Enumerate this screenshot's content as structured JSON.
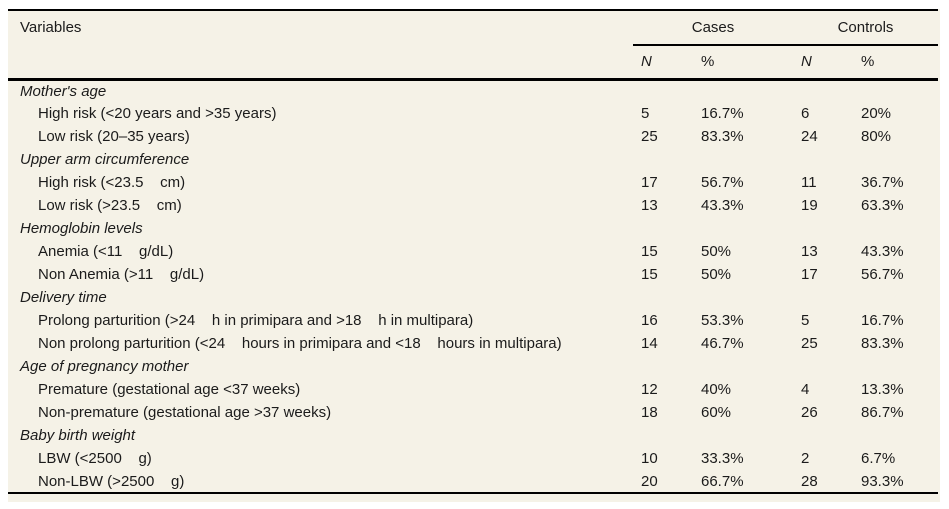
{
  "colors": {
    "page_background": "#ffffff",
    "panel_background": "#f5f2e7",
    "rule": "#000000",
    "text": "#1b1b1b"
  },
  "table": {
    "header": {
      "variables": "Variables",
      "cases": "Cases",
      "controls": "Controls",
      "n": "N",
      "pct": "%"
    },
    "rows": [
      {
        "type": "group",
        "label": "Mother's age"
      },
      {
        "type": "item",
        "label": "High risk (<20 years and >35 years)",
        "cases_n": "5",
        "cases_pct": "16.7%",
        "controls_n": "6",
        "controls_pct": "20%"
      },
      {
        "type": "item",
        "label": "Low risk (20–35 years)",
        "cases_n": "25",
        "cases_pct": "83.3%",
        "controls_n": "24",
        "controls_pct": "80%"
      },
      {
        "type": "group",
        "label": "Upper arm circumference"
      },
      {
        "type": "item",
        "label": "High risk (<23.5    cm)",
        "cases_n": "17",
        "cases_pct": "56.7%",
        "controls_n": "11",
        "controls_pct": "36.7%"
      },
      {
        "type": "item",
        "label": "Low risk (>23.5    cm)",
        "cases_n": "13",
        "cases_pct": "43.3%",
        "controls_n": "19",
        "controls_pct": "63.3%"
      },
      {
        "type": "group",
        "label": "Hemoglobin levels"
      },
      {
        "type": "item",
        "label": "Anemia (<11    g/dL)",
        "cases_n": "15",
        "cases_pct": "50%",
        "controls_n": "13",
        "controls_pct": "43.3%"
      },
      {
        "type": "item",
        "label": "Non Anemia (>11    g/dL)",
        "cases_n": "15",
        "cases_pct": "50%",
        "controls_n": "17",
        "controls_pct": "56.7%"
      },
      {
        "type": "group",
        "label": "Delivery time"
      },
      {
        "type": "item",
        "label": "Prolong parturition (>24    h in primipara and >18    h in multipara)",
        "cases_n": "16",
        "cases_pct": "53.3%",
        "controls_n": "5",
        "controls_pct": "16.7%"
      },
      {
        "type": "item",
        "label": "Non prolong parturition (<24    hours in primipara and <18    hours in multipara)",
        "cases_n": "14",
        "cases_pct": "46.7%",
        "controls_n": "25",
        "controls_pct": "83.3%"
      },
      {
        "type": "group",
        "label": "Age of pregnancy mother"
      },
      {
        "type": "item",
        "label": "Premature (gestational age <37 weeks)",
        "cases_n": "12",
        "cases_pct": "40%",
        "controls_n": "4",
        "controls_pct": "13.3%"
      },
      {
        "type": "item",
        "label": "Non-premature (gestational age >37 weeks)",
        "cases_n": "18",
        "cases_pct": "60%",
        "controls_n": "26",
        "controls_pct": "86.7%"
      },
      {
        "type": "group",
        "label": "Baby birth weight"
      },
      {
        "type": "item",
        "label": "LBW (<2500    g)",
        "cases_n": "10",
        "cases_pct": "33.3%",
        "controls_n": "2",
        "controls_pct": "6.7%"
      },
      {
        "type": "item",
        "label": "Non-LBW (>2500    g)",
        "cases_n": "20",
        "cases_pct": "66.7%",
        "controls_n": "28",
        "controls_pct": "93.3%"
      }
    ]
  }
}
